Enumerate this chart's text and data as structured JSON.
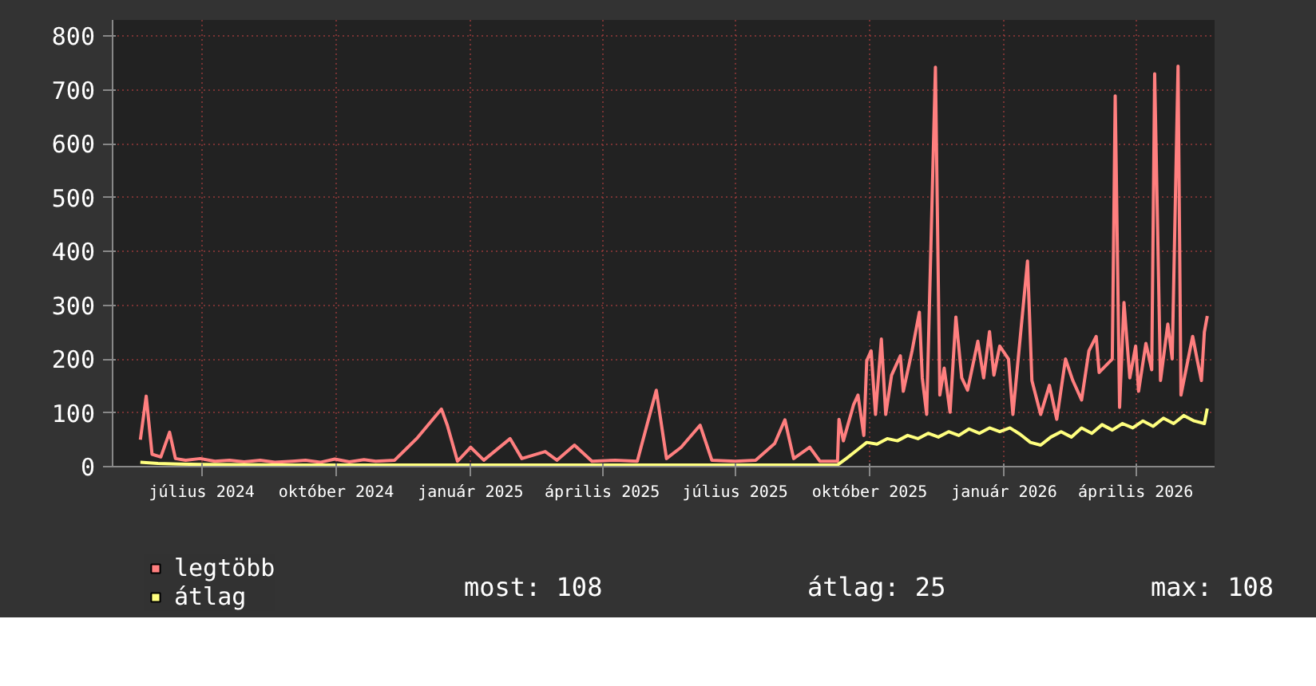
{
  "chart_data": {
    "type": "line",
    "xlim": [
      "2024-05-01",
      "2026-05-25"
    ],
    "ylim": [
      0,
      830
    ],
    "yticks": [
      0,
      100,
      200,
      300,
      400,
      500,
      600,
      700,
      800
    ],
    "xticks": [
      {
        "value": "2024-07-01",
        "label": "július 2024"
      },
      {
        "value": "2024-10-01",
        "label": "október 2024"
      },
      {
        "value": "2025-01-01",
        "label": "január 2025"
      },
      {
        "value": "2025-04-01",
        "label": "április 2025"
      },
      {
        "value": "2025-07-01",
        "label": "július 2025"
      },
      {
        "value": "2025-10-01",
        "label": "október 2025"
      },
      {
        "value": "2026-01-01",
        "label": "január 2026"
      },
      {
        "value": "2026-04-01",
        "label": "április 2026"
      }
    ],
    "grid": true,
    "legend": "bottom",
    "marker": "none",
    "line_style": "solid",
    "annotations": [
      "most: 108",
      "átlag: 25",
      "max: 108"
    ],
    "series": [
      {
        "name": "legtöbb",
        "color": "#ff7f7f",
        "x": [
          "2024-05-20",
          "2024-05-24",
          "2024-05-28",
          "2024-06-03",
          "2024-06-09",
          "2024-06-13",
          "2024-06-20",
          "2024-06-30",
          "2024-07-10",
          "2024-07-20",
          "2024-07-30",
          "2024-08-10",
          "2024-08-20",
          "2024-09-01",
          "2024-09-10",
          "2024-09-20",
          "2024-09-30",
          "2024-10-10",
          "2024-10-20",
          "2024-10-28",
          "2024-11-10",
          "2024-11-25",
          "2024-12-12",
          "2024-12-16",
          "2024-12-23",
          "2025-01-01",
          "2025-01-10",
          "2025-01-28",
          "2025-02-05",
          "2025-02-21",
          "2025-03-01",
          "2025-03-13",
          "2025-03-25",
          "2025-04-10",
          "2025-04-25",
          "2025-05-08",
          "2025-05-15",
          "2025-05-25",
          "2025-06-07",
          "2025-06-15",
          "2025-07-01",
          "2025-07-15",
          "2025-07-28",
          "2025-08-04",
          "2025-08-10",
          "2025-08-21",
          "2025-08-28",
          "2025-09-09",
          "2025-09-10",
          "2025-09-13",
          "2025-09-20",
          "2025-09-23",
          "2025-09-27",
          "2025-09-29",
          "2025-10-02",
          "2025-10-05",
          "2025-10-09",
          "2025-10-12",
          "2025-10-16",
          "2025-10-22",
          "2025-10-24",
          "2025-10-30",
          "2025-11-04",
          "2025-11-06",
          "2025-11-09",
          "2025-11-15",
          "2025-11-18",
          "2025-11-21",
          "2025-11-25",
          "2025-11-29",
          "2025-12-03",
          "2025-12-07",
          "2025-12-14",
          "2025-12-18",
          "2025-12-22",
          "2025-12-25",
          "2025-12-29",
          "2026-01-04",
          "2026-01-07",
          "2026-01-17",
          "2026-01-20",
          "2026-01-26",
          "2026-02-01",
          "2026-02-06",
          "2026-02-12",
          "2026-02-17",
          "2026-02-23",
          "2026-02-28",
          "2026-03-05",
          "2026-03-07",
          "2026-03-16",
          "2026-03-18",
          "2026-03-21",
          "2026-03-24",
          "2026-03-28",
          "2026-04-01",
          "2026-04-03",
          "2026-04-08",
          "2026-04-12",
          "2026-04-14",
          "2026-04-18",
          "2026-04-23",
          "2026-04-26",
          "2026-04-30",
          "2026-05-02",
          "2026-05-10",
          "2026-05-13",
          "2026-05-16",
          "2026-05-18",
          "2026-05-20"
        ],
        "values": [
          50,
          131,
          23,
          18,
          64,
          15,
          12,
          15,
          10,
          12,
          9,
          12,
          8,
          10,
          12,
          8,
          14,
          9,
          13,
          10,
          12,
          52,
          107,
          77,
          10,
          36,
          12,
          52,
          15,
          28,
          12,
          40,
          10,
          12,
          10,
          142,
          15,
          36,
          77,
          12,
          10,
          12,
          43,
          87,
          15,
          36,
          10,
          10,
          88,
          48,
          115,
          133,
          58,
          197,
          215,
          97,
          237,
          97,
          170,
          206,
          140,
          215,
          287,
          165,
          97,
          742,
          133,
          183,
          101,
          278,
          165,
          142,
          233,
          165,
          251,
          170,
          224,
          200,
          97,
          382,
          160,
          97,
          151,
          88,
          200,
          160,
          124,
          215,
          242,
          175,
          200,
          689,
          110,
          305,
          165,
          224,
          140,
          229,
          180,
          730,
          160,
          265,
          200,
          744,
          133,
          242,
          200,
          160,
          250,
          280
        ]
      },
      {
        "name": "átlag",
        "color": "#ffff7f",
        "x": [
          "2024-05-20",
          "2024-06-01",
          "2024-06-15",
          "2024-07-01",
          "2024-09-01",
          "2024-12-01",
          "2025-03-01",
          "2025-06-01",
          "2025-09-09",
          "2025-09-15",
          "2025-09-22",
          "2025-09-29",
          "2025-10-06",
          "2025-10-13",
          "2025-10-20",
          "2025-10-27",
          "2025-11-03",
          "2025-11-10",
          "2025-11-17",
          "2025-11-24",
          "2025-12-01",
          "2025-12-08",
          "2025-12-15",
          "2025-12-22",
          "2025-12-29",
          "2026-01-05",
          "2026-01-12",
          "2026-01-19",
          "2026-01-26",
          "2026-02-02",
          "2026-02-09",
          "2026-02-16",
          "2026-02-23",
          "2026-03-02",
          "2026-03-09",
          "2026-03-16",
          "2026-03-23",
          "2026-03-30",
          "2026-04-06",
          "2026-04-13",
          "2026-04-20",
          "2026-04-27",
          "2026-05-04",
          "2026-05-11",
          "2026-05-18",
          "2026-05-20"
        ],
        "values": [
          8,
          6,
          5,
          4,
          3,
          3,
          3,
          3,
          3,
          15,
          30,
          45,
          42,
          52,
          48,
          58,
          52,
          62,
          55,
          65,
          58,
          70,
          62,
          72,
          65,
          72,
          60,
          45,
          40,
          55,
          65,
          55,
          72,
          62,
          78,
          68,
          80,
          72,
          85,
          75,
          90,
          80,
          95,
          85,
          80,
          108
        ]
      }
    ]
  }
}
